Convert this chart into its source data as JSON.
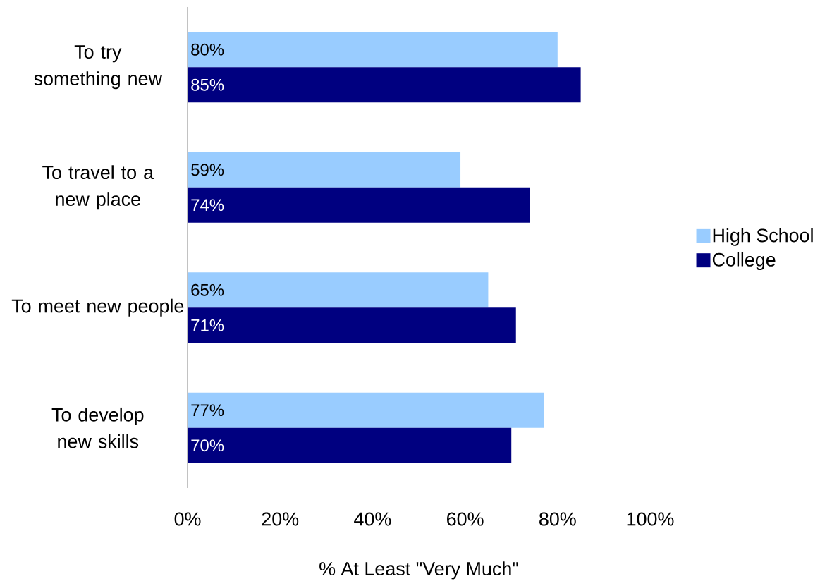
{
  "chart_data": {
    "type": "bar",
    "orientation": "horizontal",
    "xlabel": "% At Least \"Very Much\"",
    "categories": [
      "To try something new",
      "To travel to a new place",
      "To meet new people",
      "To develop new skills"
    ],
    "series": [
      {
        "name": "High School",
        "color": "#99ccff",
        "values": [
          80,
          59,
          65,
          77
        ],
        "value_labels": [
          "80%",
          "59%",
          "65%",
          "77%"
        ]
      },
      {
        "name": "College",
        "color": "#000080",
        "values": [
          85,
          74,
          71,
          70
        ],
        "value_labels": [
          "85%",
          "74%",
          "71%",
          "70%"
        ]
      }
    ],
    "xlim": [
      0,
      100
    ],
    "xticks": [
      {
        "value": 0,
        "label": "0%"
      },
      {
        "value": 20,
        "label": "20%"
      },
      {
        "value": 40,
        "label": "40%"
      },
      {
        "value": 60,
        "label": "60%"
      },
      {
        "value": 80,
        "label": "80%"
      },
      {
        "value": 100,
        "label": "100%"
      }
    ],
    "grid": false,
    "legend": "right"
  }
}
